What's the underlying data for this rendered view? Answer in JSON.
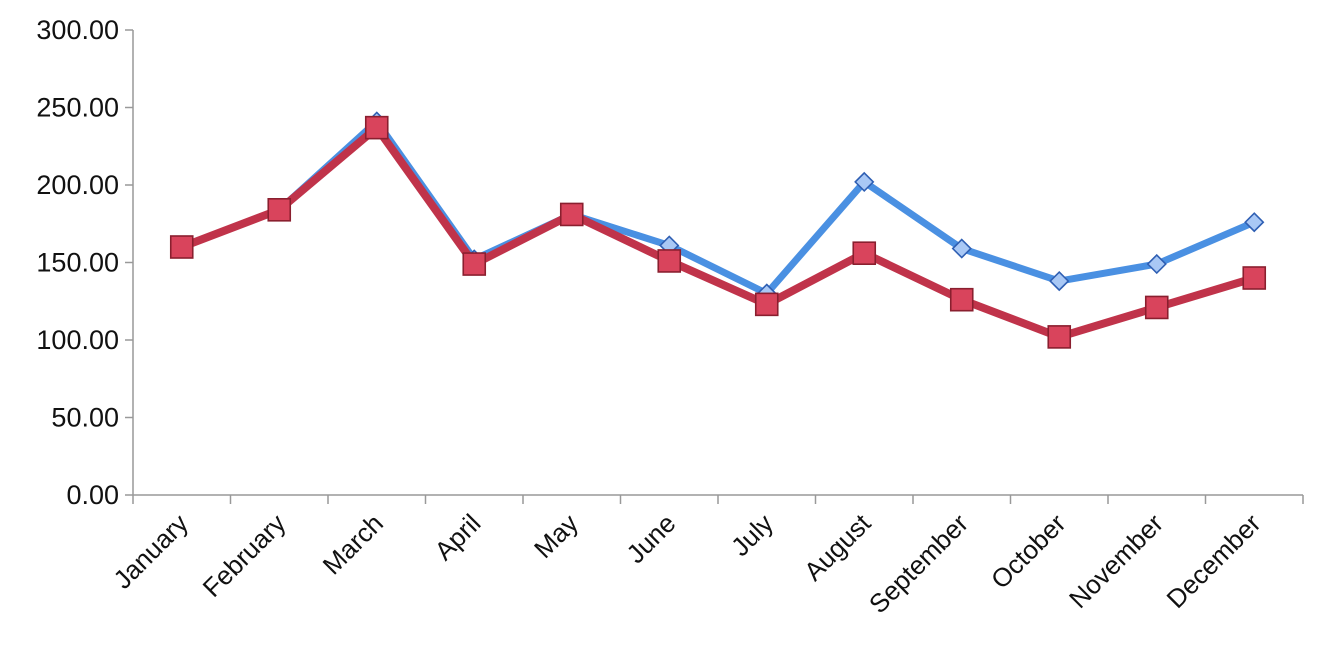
{
  "chart_data": {
    "type": "line",
    "title": "",
    "xlabel": "",
    "ylabel": "",
    "categories": [
      "January",
      "February",
      "March",
      "April",
      "May",
      "June",
      "July",
      "August",
      "September",
      "October",
      "November",
      "December"
    ],
    "ylim": [
      0,
      300
    ],
    "yticks": [
      "0.00",
      "50.00",
      "100.00",
      "150.00",
      "200.00",
      "250.00",
      "300.00"
    ],
    "grid": false,
    "legend": "none",
    "series": [
      {
        "values": [
          160,
          184,
          241,
          152,
          181,
          161,
          130,
          202,
          159,
          138,
          149,
          176
        ],
        "color": "#4a90e2",
        "marker": "diamond"
      },
      {
        "values": [
          160,
          184,
          237,
          149,
          181,
          151,
          123,
          156,
          126,
          102,
          121,
          140
        ],
        "color": "#c0334a",
        "marker": "square"
      }
    ]
  }
}
